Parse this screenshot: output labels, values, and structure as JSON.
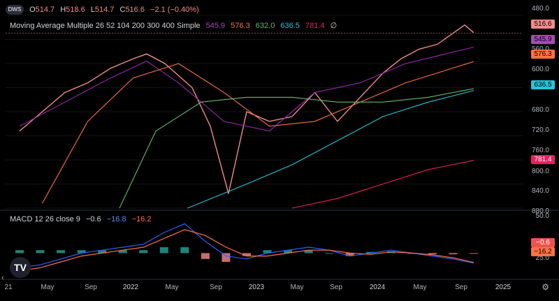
{
  "ohlc": {
    "symbol_icon": "DWS",
    "open_label": "O",
    "open": "514.7",
    "high_label": "H",
    "high": "518.6",
    "low_label": "L",
    "low": "514.7",
    "close_label": "C",
    "close": "516.6",
    "change": "−2.1 (−0.40%)"
  },
  "ma_legend": {
    "title": "Moving Average Multiple 26 52 104 200 300 400 Simple",
    "values": [
      "545.9",
      "576.3",
      "632.0",
      "636.5",
      "781.4",
      "∅"
    ],
    "colors": [
      "#9c27b0",
      "#ff7043",
      "#66bb6a",
      "#26c6da",
      "#e91e63",
      "#d1d4dc"
    ]
  },
  "macd_legend": {
    "title": "MACD 12 26 close 9",
    "values": [
      "−0.6",
      "−16.8",
      "−16.2"
    ],
    "colors": [
      "#d1d4dc",
      "#2962ff",
      "#ff7043"
    ]
  },
  "price_axis": [
    "480.0",
    "560.0",
    "600.0",
    "680.0",
    "720.0",
    "760.0",
    "800.0",
    "840.0",
    "880.0"
  ],
  "price_badges": [
    {
      "value": "516.6",
      "color": "#f28b8b",
      "text_color": "#000"
    },
    {
      "value": "545.9",
      "color": "#ab47bc",
      "text_color": "#000"
    },
    {
      "value": "576.3",
      "color": "#ff7043",
      "text_color": "#000"
    },
    {
      "value": "636.5",
      "color": "#26c6da",
      "text_color": "#000"
    },
    {
      "value": "781.4",
      "color": "#e91e63",
      "text_color": "#fff"
    }
  ],
  "macd_axis": [
    "50.0",
    "25.0"
  ],
  "macd_badges": [
    {
      "value": "−0.6",
      "color": "#ef5350",
      "text_color": "#fff"
    },
    {
      "value": "−16.2",
      "color": "#ff7043",
      "text_color": "#000"
    }
  ],
  "time_axis": [
    "21",
    "May",
    "Sep",
    "2022",
    "May",
    "Sep",
    "2023",
    "May",
    "Sep",
    "2024",
    "May",
    "Sep",
    "2025"
  ],
  "chart_data": {
    "type": "line",
    "price_scale": "inverted",
    "ylim_price": [
      480,
      880
    ],
    "series": [
      {
        "name": "Price",
        "color": "#f28b8b",
        "t": [
          0,
          0.05,
          0.1,
          0.15,
          0.2,
          0.25,
          0.28,
          0.32,
          0.38,
          0.42,
          0.46,
          0.5,
          0.55,
          0.6,
          0.65,
          0.7,
          0.76,
          0.8,
          0.84,
          0.88,
          0.92,
          0.95,
          0.98,
          1.0
        ],
        "values": [
          720,
          680,
          640,
          620,
          590,
          570,
          560,
          580,
          630,
          710,
          850,
          680,
          700,
          690,
          640,
          700,
          640,
          600,
          570,
          550,
          540,
          520,
          500,
          516
        ]
      },
      {
        "name": "26",
        "color": "#9c27b0",
        "t": [
          0,
          0.1,
          0.2,
          0.28,
          0.35,
          0.45,
          0.55,
          0.65,
          0.75,
          0.85,
          1.0
        ],
        "values": [
          710,
          660,
          610,
          575,
          620,
          700,
          720,
          640,
          620,
          580,
          546
        ]
      },
      {
        "name": "52",
        "color": "#ff7043",
        "t": [
          0.05,
          0.15,
          0.25,
          0.35,
          0.45,
          0.55,
          0.65,
          0.75,
          0.85,
          1.0
        ],
        "values": [
          870,
          700,
          610,
          580,
          640,
          710,
          700,
          660,
          620,
          576
        ]
      },
      {
        "name": "104",
        "color": "#66bb6a",
        "t": [
          0.22,
          0.3,
          0.4,
          0.5,
          0.6,
          0.7,
          0.8,
          0.9,
          1.0
        ],
        "values": [
          880,
          720,
          660,
          650,
          650,
          660,
          660,
          650,
          632
        ]
      },
      {
        "name": "200",
        "color": "#26c6da",
        "t": [
          0.37,
          0.5,
          0.6,
          0.7,
          0.8,
          0.9,
          1.0
        ],
        "values": [
          880,
          830,
          790,
          740,
          690,
          660,
          636
        ]
      },
      {
        "name": "300",
        "color": "#e91e63",
        "t": [
          0.6,
          0.7,
          0.8,
          0.9,
          1.0
        ],
        "values": [
          880,
          860,
          830,
          800,
          781
        ]
      }
    ],
    "macd": {
      "ylim": [
        -40,
        60
      ],
      "macd_line": [
        -25,
        -20,
        -10,
        0,
        5,
        10,
        15,
        35,
        50,
        20,
        -5,
        -10,
        0,
        5,
        10,
        5,
        -5,
        0,
        5,
        0,
        -5,
        -10,
        -17
      ],
      "signal_line": [
        -30,
        -25,
        -15,
        -5,
        0,
        5,
        10,
        25,
        40,
        30,
        10,
        -5,
        -5,
        0,
        5,
        5,
        0,
        -2,
        2,
        0,
        -3,
        -8,
        -16
      ],
      "histogram": [
        5,
        5,
        5,
        5,
        5,
        5,
        5,
        10,
        10,
        -10,
        -15,
        -5,
        5,
        5,
        5,
        0,
        -5,
        2,
        3,
        0,
        -2,
        -2,
        -1
      ]
    }
  }
}
